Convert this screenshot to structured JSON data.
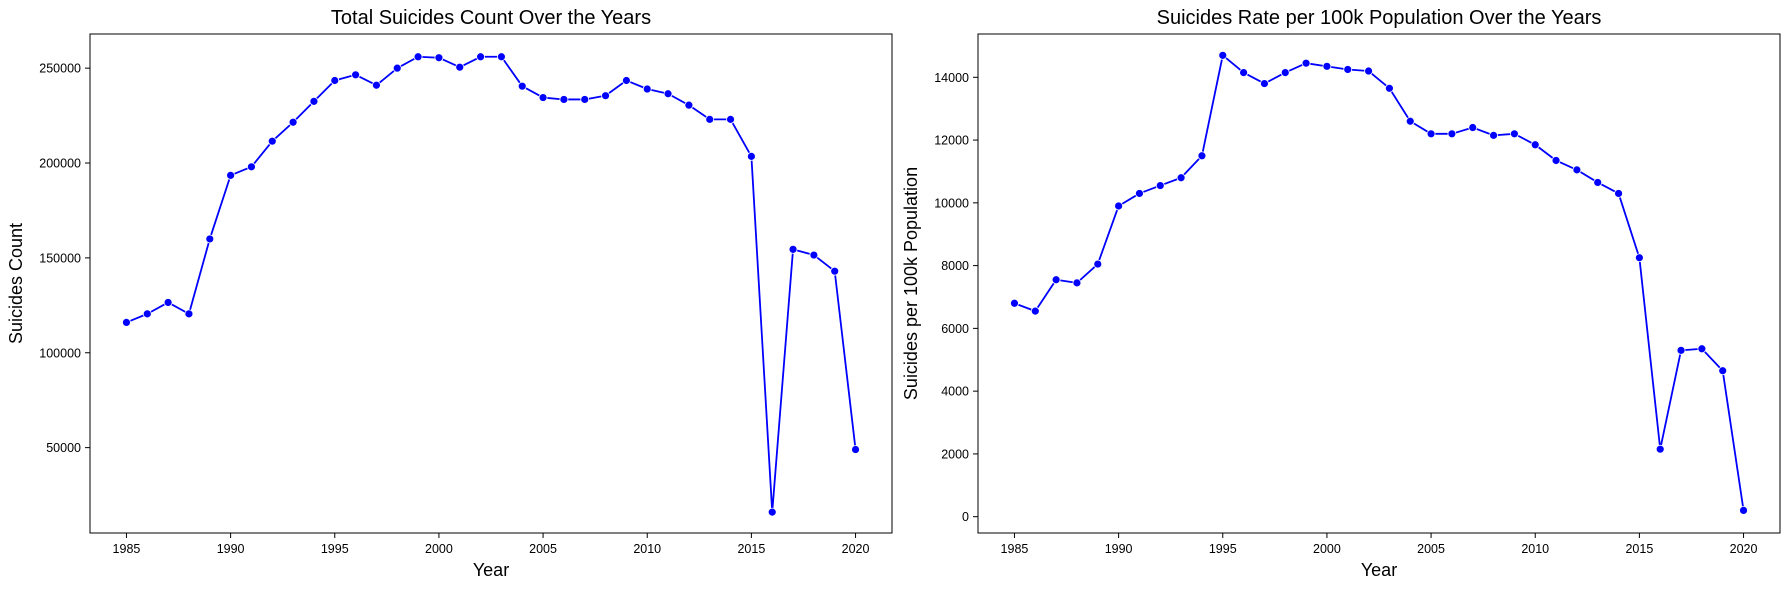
{
  "colors": {
    "line": "#0000ff",
    "marker": "#0000ff",
    "background": "#ffffff",
    "axes": "#000000"
  },
  "chart_data": [
    {
      "type": "line",
      "title": "Total Suicides Count Over the Years",
      "xlabel": "Year",
      "ylabel": "Suicides Count",
      "grid": false,
      "xlim": [
        1983.25,
        2021.75
      ],
      "ylim": [
        5000,
        268000
      ],
      "xticks": [
        1985,
        1990,
        1995,
        2000,
        2005,
        2010,
        2015,
        2020
      ],
      "yticks": [
        50000,
        100000,
        150000,
        200000,
        250000
      ],
      "x": [
        1985,
        1986,
        1987,
        1988,
        1989,
        1990,
        1991,
        1992,
        1993,
        1994,
        1995,
        1996,
        1997,
        1998,
        1999,
        2000,
        2001,
        2002,
        2003,
        2004,
        2005,
        2006,
        2007,
        2008,
        2009,
        2010,
        2011,
        2012,
        2013,
        2014,
        2015,
        2016,
        2017,
        2018,
        2019,
        2020
      ],
      "series": [
        {
          "values": [
            116000,
            120500,
            126500,
            120500,
            160000,
            193500,
            198000,
            211500,
            221500,
            232500,
            243500,
            246500,
            241000,
            250000,
            256000,
            255500,
            250500,
            256000,
            256000,
            240500,
            234500,
            233500,
            233500,
            235500,
            243500,
            239000,
            236500,
            230500,
            223000,
            223000,
            203500,
            16000,
            154500,
            151500,
            143000,
            49000
          ]
        }
      ]
    },
    {
      "type": "line",
      "title": "Suicides Rate per 100k Population Over the Years",
      "xlabel": "Year",
      "ylabel": "Suicides per 100k Population",
      "grid": false,
      "xlim": [
        1983.25,
        2021.75
      ],
      "ylim": [
        -520,
        15380
      ],
      "xticks": [
        1985,
        1990,
        1995,
        2000,
        2005,
        2010,
        2015,
        2020
      ],
      "yticks": [
        0,
        2000,
        4000,
        6000,
        8000,
        10000,
        12000,
        14000
      ],
      "x": [
        1985,
        1986,
        1987,
        1988,
        1989,
        1990,
        1991,
        1992,
        1993,
        1994,
        1995,
        1996,
        1997,
        1998,
        1999,
        2000,
        2001,
        2002,
        2003,
        2004,
        2005,
        2006,
        2007,
        2008,
        2009,
        2010,
        2011,
        2012,
        2013,
        2014,
        2015,
        2016,
        2017,
        2018,
        2019,
        2020
      ],
      "series": [
        {
          "values": [
            6800,
            6550,
            7550,
            7450,
            8050,
            9900,
            10300,
            10550,
            10800,
            11500,
            14700,
            14150,
            13800,
            14150,
            14450,
            14350,
            14250,
            14200,
            13650,
            12600,
            12200,
            12200,
            12400,
            12150,
            12200,
            11850,
            11350,
            11050,
            10650,
            10300,
            8250,
            2150,
            5300,
            5350,
            4650,
            200
          ]
        }
      ]
    }
  ]
}
